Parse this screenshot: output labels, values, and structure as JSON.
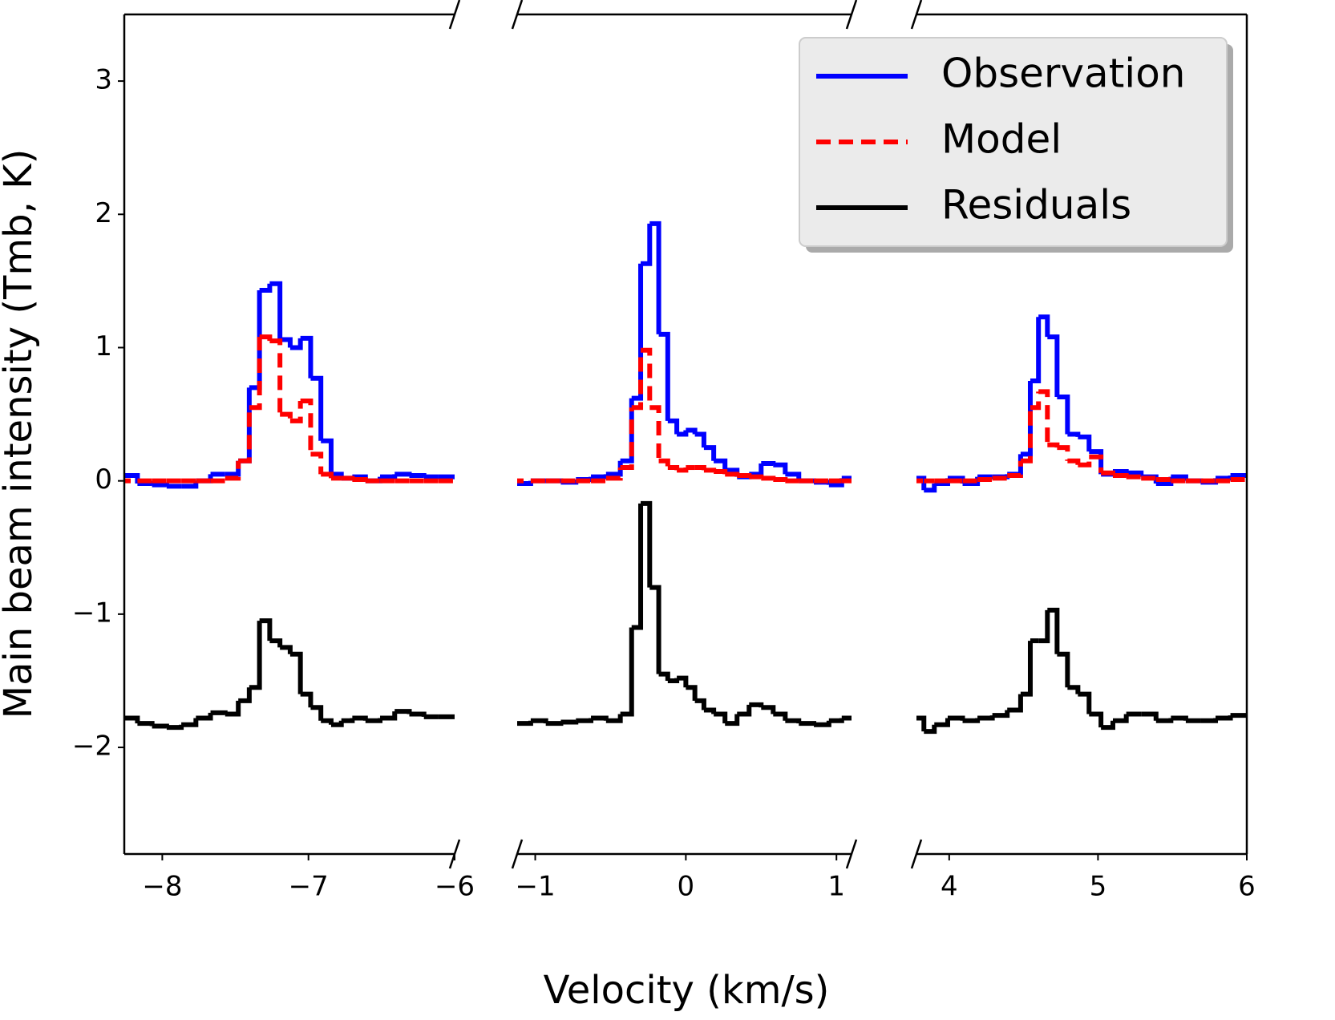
{
  "chart_data": {
    "type": "line",
    "xlabel": "Velocity (km/s)",
    "ylabel": "Main beam intensity (Tmb, K)",
    "ylim": [
      -2.8,
      3.5
    ],
    "yticks": [
      {
        "value": -2,
        "label": "−2"
      },
      {
        "value": -1,
        "label": "−1"
      },
      0,
      1,
      2,
      3
    ],
    "legend": "upper right",
    "panels": [
      {
        "xlim": [
          -8.26,
          -6.0
        ],
        "xticks": [
          {
            "value": -8,
            "label": "−8"
          },
          {
            "value": -7,
            "label": "−7"
          },
          {
            "value": -6,
            "label": "−6"
          }
        ],
        "x": [
          -8.22,
          -8.12,
          -8.02,
          -7.92,
          -7.82,
          -7.72,
          -7.62,
          -7.52,
          -7.44,
          -7.37,
          -7.3,
          -7.23,
          -7.16,
          -7.09,
          -7.02,
          -6.95,
          -6.88,
          -6.81,
          -6.74,
          -6.66,
          -6.56,
          -6.46,
          -6.36,
          -6.26,
          -6.16,
          -6.06
        ],
        "series": [
          {
            "name": "Observation",
            "color": "#0000ff",
            "style": "solid",
            "values": [
              0.04,
              -0.02,
              -0.03,
              -0.04,
              -0.04,
              0.0,
              0.05,
              0.05,
              0.15,
              0.7,
              1.43,
              1.48,
              1.06,
              1.0,
              1.07,
              0.77,
              0.3,
              0.05,
              0.02,
              0.03,
              0.0,
              0.03,
              0.05,
              0.04,
              0.03,
              0.03
            ]
          },
          {
            "name": "Model",
            "color": "#ff0000",
            "style": "dashed",
            "values": [
              0,
              0,
              0,
              0,
              0,
              0,
              0,
              0.02,
              0.15,
              0.55,
              1.08,
              1.05,
              0.5,
              0.45,
              0.6,
              0.2,
              0.05,
              0.02,
              0.02,
              0.01,
              0,
              0,
              0,
              0,
              0,
              0
            ]
          },
          {
            "name": "Residuals",
            "color": "#000000",
            "style": "solid",
            "values": [
              -1.78,
              -1.82,
              -1.84,
              -1.85,
              -1.83,
              -1.78,
              -1.74,
              -1.75,
              -1.65,
              -1.55,
              -1.05,
              -1.2,
              -1.25,
              -1.3,
              -1.6,
              -1.7,
              -1.8,
              -1.83,
              -1.8,
              -1.78,
              -1.8,
              -1.78,
              -1.73,
              -1.75,
              -1.77,
              -1.77
            ]
          }
        ]
      },
      {
        "xlim": [
          -1.12,
          1.1
        ],
        "xticks": [
          {
            "value": -1,
            "label": "−1"
          },
          0,
          1
        ],
        "x": [
          -1.08,
          -0.98,
          -0.88,
          -0.78,
          -0.68,
          -0.58,
          -0.48,
          -0.39,
          -0.33,
          -0.27,
          -0.21,
          -0.15,
          -0.09,
          -0.03,
          0.03,
          0.09,
          0.15,
          0.22,
          0.3,
          0.38,
          0.46,
          0.54,
          0.62,
          0.7,
          0.8,
          0.9,
          1.0,
          1.07
        ],
        "series": [
          {
            "color": "#0000ff",
            "style": "solid",
            "values": [
              -0.02,
              0,
              0,
              -0.01,
              0.01,
              0.03,
              0.05,
              0.15,
              0.62,
              1.63,
              1.93,
              1.1,
              0.45,
              0.35,
              0.38,
              0.35,
              0.25,
              0.15,
              0.08,
              0.03,
              0.05,
              0.13,
              0.12,
              0.05,
              0,
              -0.01,
              -0.03,
              0.02
            ]
          },
          {
            "color": "#ff0000",
            "style": "dashed",
            "values": [
              0,
              0,
              0,
              0,
              0,
              0,
              0.02,
              0.1,
              0.55,
              0.98,
              0.55,
              0.15,
              0.1,
              0.08,
              0.1,
              0.1,
              0.08,
              0.07,
              0.05,
              0.04,
              0.03,
              0.02,
              0.01,
              0,
              0,
              0,
              0,
              0
            ]
          },
          {
            "color": "#000000",
            "style": "solid",
            "values": [
              -1.82,
              -1.8,
              -1.82,
              -1.81,
              -1.8,
              -1.78,
              -1.8,
              -1.75,
              -1.1,
              -0.17,
              -0.8,
              -1.45,
              -1.5,
              -1.48,
              -1.55,
              -1.65,
              -1.72,
              -1.75,
              -1.82,
              -1.75,
              -1.68,
              -1.7,
              -1.75,
              -1.8,
              -1.82,
              -1.83,
              -1.8,
              -1.78
            ]
          }
        ]
      },
      {
        "xlim": [
          3.78,
          6.0
        ],
        "xticks": [
          4,
          5,
          6
        ],
        "x": [
          3.8,
          3.86,
          3.94,
          4.04,
          4.14,
          4.24,
          4.34,
          4.44,
          4.52,
          4.57,
          4.63,
          4.69,
          4.76,
          4.83,
          4.9,
          4.98,
          5.06,
          5.14,
          5.24,
          5.34,
          5.44,
          5.54,
          5.64,
          5.74,
          5.84,
          5.94
        ],
        "series": [
          {
            "color": "#0000ff",
            "style": "solid",
            "values": [
              0.02,
              -0.07,
              -0.02,
              0.02,
              -0.02,
              0.03,
              0.03,
              0.05,
              0.2,
              0.75,
              1.23,
              1.08,
              0.63,
              0.35,
              0.33,
              0.22,
              0.05,
              0.07,
              0.06,
              0.03,
              -0.02,
              0.03,
              0.0,
              -0.01,
              0.02,
              0.04
            ]
          },
          {
            "color": "#ff0000",
            "style": "dashed",
            "values": [
              0,
              0,
              0,
              0,
              0,
              0.01,
              0.02,
              0.04,
              0.15,
              0.55,
              0.67,
              0.27,
              0.25,
              0.15,
              0.12,
              0.18,
              0.06,
              0.04,
              0.03,
              0.02,
              0.01,
              0,
              0,
              0,
              0,
              0.01
            ]
          },
          {
            "color": "#000000",
            "style": "solid",
            "values": [
              -1.78,
              -1.88,
              -1.83,
              -1.78,
              -1.8,
              -1.78,
              -1.76,
              -1.72,
              -1.6,
              -1.2,
              -1.2,
              -0.97,
              -1.3,
              -1.55,
              -1.6,
              -1.75,
              -1.85,
              -1.8,
              -1.75,
              -1.75,
              -1.8,
              -1.78,
              -1.8,
              -1.8,
              -1.78,
              -1.76
            ]
          }
        ]
      }
    ]
  }
}
